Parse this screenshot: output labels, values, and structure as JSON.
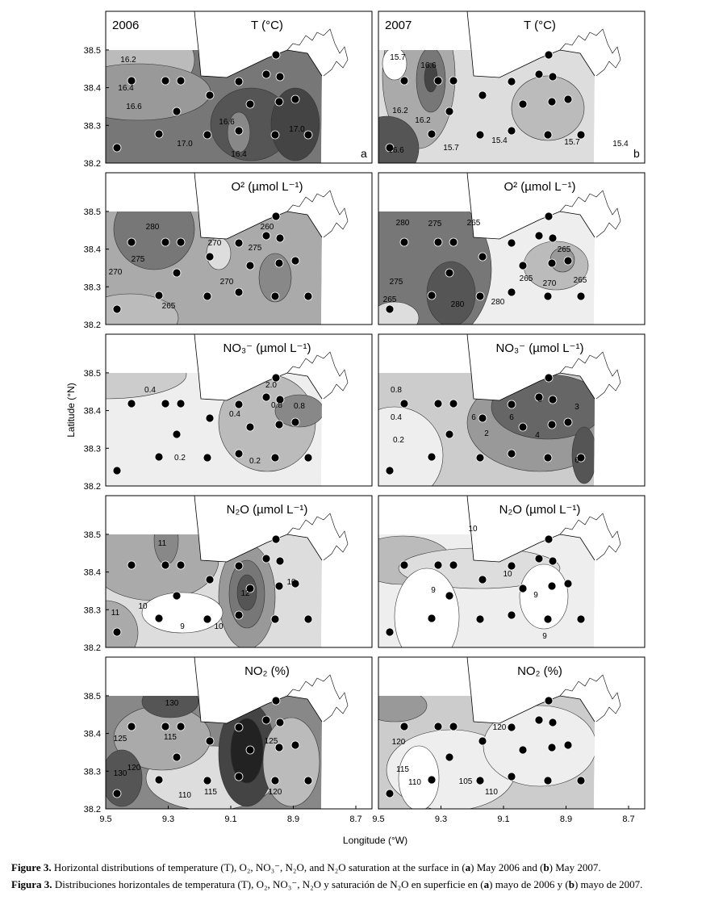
{
  "figure": {
    "y_label": "Latitude (°N)",
    "x_label": "Longitude (°W)",
    "lat_ticks": [
      38.2,
      38.3,
      38.4,
      38.5
    ],
    "lon_ticks": [
      9.5,
      9.3,
      9.1,
      8.9,
      8.7
    ],
    "panels": [
      {
        "year": "2006",
        "title": "T (°C)",
        "letter": "a",
        "contour_labels": [
          "16.2",
          "16.4",
          "16.6",
          "17.0",
          "16.6",
          "16.4",
          "17.0"
        ]
      },
      {
        "year": "2007",
        "title": "T (°C)",
        "letter": "b",
        "contour_labels": [
          "15.7",
          "16.6",
          "16.2",
          "16.2",
          "16.6",
          "15.7",
          "15.4",
          "15.7",
          "15.4"
        ]
      },
      {
        "title": "O² (µmol L⁻¹)",
        "contour_labels": [
          "280",
          "275",
          "270",
          "265",
          "270",
          "270",
          "275",
          "260"
        ]
      },
      {
        "title": "O² (µmol L⁻¹)",
        "contour_labels": [
          "280",
          "275",
          "265",
          "275",
          "280",
          "280",
          "265",
          "265",
          "265",
          "270",
          "265"
        ]
      },
      {
        "title": "NO₃⁻ (µmol L⁻¹)",
        "contour_labels": [
          "0.4",
          "0.4",
          "2.0",
          "0.8",
          "0.8",
          "0.2",
          "0.2"
        ]
      },
      {
        "title": "NO₃⁻ (µmol L⁻¹)",
        "contour_labels": [
          "0.8",
          "0.4",
          "0.2",
          "2",
          "6",
          "6",
          "6",
          "4",
          "3",
          "6"
        ]
      },
      {
        "title": "N₂O (µmol L⁻¹)",
        "contour_labels": [
          "11",
          "11",
          "10",
          "9",
          "10",
          "12",
          "10"
        ]
      },
      {
        "title": "N₂O (µmol L⁻¹)",
        "contour_labels": [
          "10",
          "9",
          "10",
          "9",
          "9"
        ]
      },
      {
        "title": "NO₂ (%)",
        "contour_labels": [
          "130",
          "125",
          "115",
          "120",
          "130",
          "110",
          "115",
          "125",
          "120"
        ]
      },
      {
        "title": "NO₂ (%)",
        "contour_labels": [
          "120",
          "120",
          "115",
          "110",
          "105",
          "110"
        ]
      }
    ]
  },
  "caption": {
    "english": [
      "Figure 3.",
      " Horizontal distributions of temperature (T), O₂, NO₃⁻, N₂O, and N₂O saturation at the surface in (",
      "a",
      ") May 2006 and (",
      "b",
      ") May 2007."
    ],
    "spanish": [
      "Figura 3.",
      " Distribuciones horizontales de temperatura (T), O₂, NO₃⁻, N₂O y saturación de N₂O en superficie en (",
      "a",
      ") mayo de 2006 y (",
      "b",
      ") mayo de 2007."
    ]
  }
}
